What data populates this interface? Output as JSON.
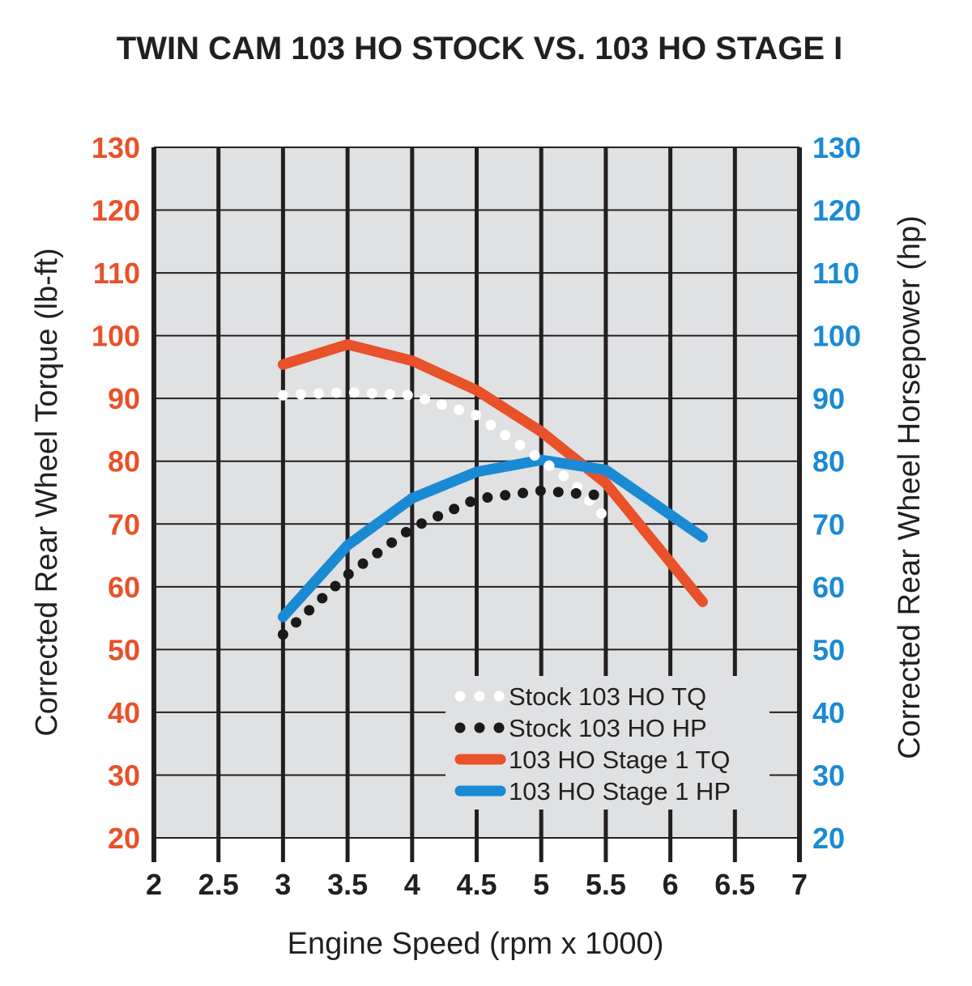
{
  "chart_data": {
    "type": "line",
    "title": "TWIN CAM 103 HO STOCK VS. 103 HO STAGE I",
    "xlabel": "Engine Speed (rpm x 1000)",
    "ylabel_left": "Corrected Rear Wheel Torque (lb-ft)",
    "ylabel_right": "Corrected Rear Wheel Horsepower (hp)",
    "xlim": [
      2,
      7
    ],
    "ylim": [
      20,
      130
    ],
    "x_ticks": [
      "2",
      "2.5",
      "3",
      "3.5",
      "4",
      "4.5",
      "5",
      "5.5",
      "6",
      "6.5",
      "7"
    ],
    "y_ticks": [
      "130",
      "120",
      "110",
      "100",
      "90",
      "80",
      "70",
      "60",
      "50",
      "40",
      "30",
      "20"
    ],
    "grid": true,
    "legend_position": "bottom-right",
    "colors": {
      "left_axis": "#e8512a",
      "right_axis": "#1a8ad4",
      "plot_bg": "#e0e1e2"
    },
    "series": [
      {
        "name": "Stock 103 HO TQ",
        "color": "#ffffff",
        "style": "dotted",
        "x": [
          3.0,
          3.5,
          4.0,
          4.5,
          5.0,
          5.25,
          5.5
        ],
        "y": [
          90.5,
          91,
          90.5,
          87.3,
          80.2,
          76.5,
          70.9
        ]
      },
      {
        "name": "Stock 103 HO HP",
        "color": "#1a1a1a",
        "style": "dotted",
        "x": [
          3.0,
          3.5,
          4.0,
          4.5,
          5.0,
          5.5
        ],
        "y": [
          52.4,
          61.9,
          69.4,
          74,
          75.3,
          74.5
        ]
      },
      {
        "name": "103 HO Stage 1 TQ",
        "color": "#e8512a",
        "style": "solid",
        "x": [
          3.0,
          3.5,
          4.0,
          4.5,
          5.0,
          5.5,
          6.25
        ],
        "y": [
          95.4,
          98.6,
          96,
          91.3,
          84.7,
          76.5,
          57.6
        ]
      },
      {
        "name": "103 HO Stage 1 HP",
        "color": "#1a8ad4",
        "style": "solid",
        "x": [
          3.0,
          3.5,
          4.0,
          4.5,
          5.0,
          5.5,
          6.25
        ],
        "y": [
          55.2,
          66.6,
          74.1,
          78.3,
          80.2,
          78.6,
          67.9
        ]
      }
    ]
  }
}
